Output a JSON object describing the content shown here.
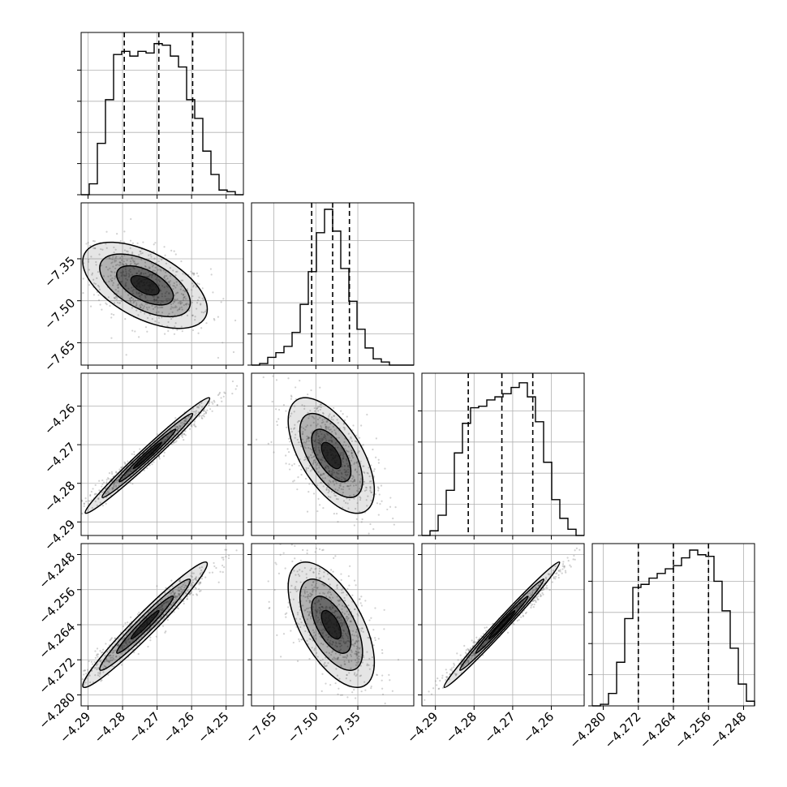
{
  "chart_data": {
    "type": "corner",
    "title": "",
    "grid": true,
    "histogram_bins": 20,
    "colors": {
      "line": "#000000",
      "grid": "#b0b0b0",
      "points": "#7a7a7a",
      "density": "#000000"
    },
    "parameters": [
      {
        "range": [
          -4.292,
          -4.245
        ],
        "ticks": [
          -4.29,
          -4.28,
          -4.27,
          -4.26,
          -4.25
        ],
        "tick_labels": [
          "−4.29",
          "−4.28",
          "−4.27",
          "−4.26",
          "−4.25"
        ],
        "quantiles": [
          -4.2795,
          -4.2695,
          -4.2597
        ],
        "hist": [
          0.0,
          0.07,
          0.33,
          0.61,
          0.9,
          0.92,
          0.89,
          0.92,
          0.91,
          0.97,
          0.96,
          0.89,
          0.82,
          0.61,
          0.49,
          0.28,
          0.13,
          0.03,
          0.02,
          0.0
        ]
      },
      {
        "range": [
          -7.73,
          -7.15
        ],
        "ticks": [
          -7.65,
          -7.5,
          -7.35
        ],
        "tick_labels": [
          "−7.65",
          "−7.50",
          "−7.35"
        ],
        "quantiles": [
          -7.515,
          -7.44,
          -7.38
        ],
        "hist": [
          0.0,
          0.01,
          0.05,
          0.08,
          0.12,
          0.21,
          0.39,
          0.6,
          0.85,
          1.0,
          0.86,
          0.62,
          0.41,
          0.23,
          0.11,
          0.04,
          0.02,
          0.0,
          0.0,
          0.0
        ]
      },
      {
        "range": [
          -4.2935,
          -4.2515
        ],
        "ticks": [
          -4.29,
          -4.28,
          -4.27,
          -4.26
        ],
        "tick_labels": [
          "−4.29",
          "−4.28",
          "−4.27",
          "−4.26"
        ],
        "quantiles": [
          -4.2815,
          -4.2728,
          -4.2648
        ],
        "hist": [
          0.0,
          0.03,
          0.13,
          0.29,
          0.53,
          0.72,
          0.82,
          0.83,
          0.87,
          0.89,
          0.91,
          0.95,
          0.98,
          0.89,
          0.73,
          0.47,
          0.23,
          0.11,
          0.04,
          0.0
        ]
      },
      {
        "range": [
          -4.2825,
          -4.2455
        ],
        "ticks": [
          -4.28,
          -4.272,
          -4.264,
          -4.256,
          -4.248
        ],
        "tick_labels": [
          "−4.280",
          "−4.272",
          "−4.264",
          "−4.256",
          "−4.248"
        ],
        "quantiles": [
          -4.272,
          -4.264,
          -4.256
        ],
        "hist": [
          0.0,
          0.01,
          0.08,
          0.28,
          0.56,
          0.76,
          0.78,
          0.82,
          0.85,
          0.88,
          0.9,
          0.95,
          1.0,
          0.97,
          0.96,
          0.8,
          0.61,
          0.37,
          0.14,
          0.03
        ]
      }
    ],
    "pairs": [
      {
        "x": 0,
        "y": 1,
        "center": [
          -4.2735,
          -7.445
        ],
        "sd": [
          0.0082,
          0.07
        ],
        "correlation": -0.55
      },
      {
        "x": 0,
        "y": 2,
        "center": [
          -4.2728,
          -4.2728
        ],
        "sd": [
          0.0082,
          0.0068
        ],
        "correlation": 0.985
      },
      {
        "x": 1,
        "y": 2,
        "center": [
          -7.445,
          -4.2728
        ],
        "sd": [
          0.07,
          0.0068
        ],
        "correlation": -0.6
      },
      {
        "x": 0,
        "y": 3,
        "center": [
          -4.2735,
          -4.264
        ],
        "sd": [
          0.0082,
          0.0065
        ],
        "correlation": 0.97
      },
      {
        "x": 1,
        "y": 3,
        "center": [
          -7.445,
          -4.264
        ],
        "sd": [
          0.07,
          0.0065
        ],
        "correlation": -0.6
      },
      {
        "x": 2,
        "y": 3,
        "center": [
          -4.2728,
          -4.264
        ],
        "sd": [
          0.0068,
          0.0065
        ],
        "correlation": 0.99
      }
    ]
  }
}
